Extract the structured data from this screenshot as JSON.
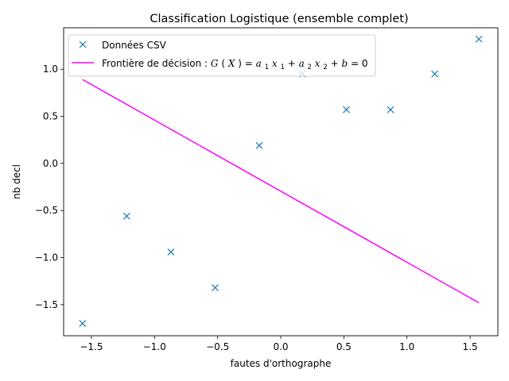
{
  "chart_data": {
    "type": "scatter",
    "title": "Classification Logistique (ensemble complet)",
    "xlabel": "fautes d'orthographe",
    "ylabel": "nb decl",
    "xlim": [
      -1.72,
      1.72
    ],
    "ylim": [
      -1.83,
      1.44
    ],
    "x_ticks": [
      -1.5,
      -1.0,
      -0.5,
      0.0,
      0.5,
      1.0,
      1.5
    ],
    "x_tick_labels": [
      "−1.5",
      "−1.0",
      "−0.5",
      "0.0",
      "0.5",
      "1.0",
      "1.5"
    ],
    "y_ticks": [
      -1.5,
      -1.0,
      -0.5,
      0.0,
      0.5,
      1.0
    ],
    "y_tick_labels": [
      "−1.5",
      "−1.0",
      "−0.5",
      "0.0",
      "0.5",
      "1.0"
    ],
    "grid": false,
    "legend_position": "top-left",
    "series": [
      {
        "name": "Données CSV",
        "kind": "scatter",
        "marker": "x",
        "color": "#1f77b4",
        "points": [
          [
            -1.57,
            -1.7
          ],
          [
            -1.22,
            -0.56
          ],
          [
            -0.87,
            -0.94
          ],
          [
            -0.52,
            -1.32
          ],
          [
            -0.17,
            0.19
          ],
          [
            0.17,
            0.95
          ],
          [
            0.52,
            0.57
          ],
          [
            0.87,
            0.57
          ],
          [
            1.22,
            0.95
          ],
          [
            1.57,
            1.32
          ]
        ]
      },
      {
        "name": "Frontière de décision : G(X) = a1x1 + a2x2 + b = 0",
        "kind": "line",
        "color": "#ff00ff",
        "points": [
          [
            -1.57,
            0.89
          ],
          [
            1.57,
            -1.48
          ]
        ]
      }
    ]
  },
  "legend": {
    "scatter_label": "Données CSV",
    "line_prefix": "Frontière de décision : ",
    "math": {
      "g": "G",
      "x": "X",
      "a": "a",
      "x_var": "x",
      "b": "b",
      "sub1": "1",
      "sub2": "2",
      "open_paren": "(",
      "close_paren": ")",
      "equals": " = ",
      "plus": " + ",
      "zero": "0"
    }
  }
}
